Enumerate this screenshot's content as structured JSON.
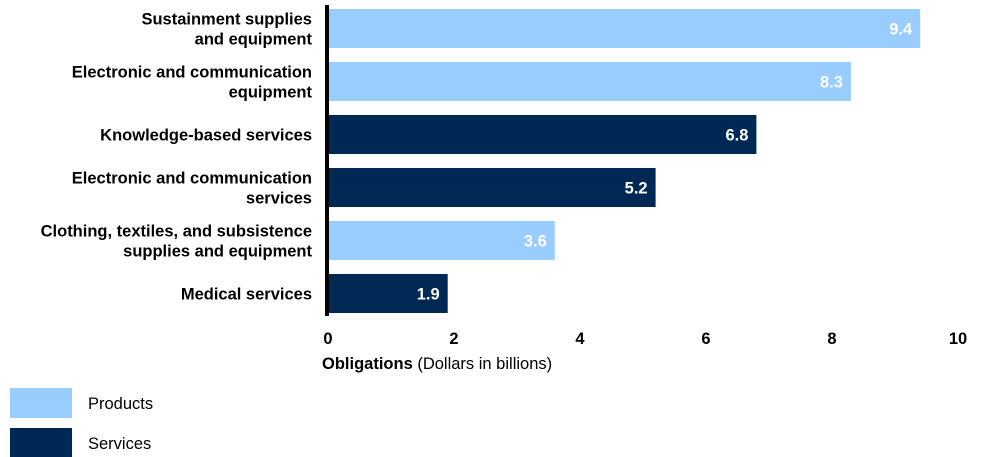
{
  "chart_data": {
    "type": "bar",
    "orientation": "horizontal",
    "categories": [
      [
        "Sustainment supplies",
        "and equipment"
      ],
      [
        "Electronic and communication",
        "equipment"
      ],
      [
        "Knowledge-based services"
      ],
      [
        "Electronic and communication",
        "services"
      ],
      [
        "Clothing, textiles, and subsistence",
        "supplies and equipment"
      ],
      [
        "Medical services"
      ]
    ],
    "values": [
      9.4,
      8.3,
      6.8,
      5.2,
      3.6,
      1.9
    ],
    "value_labels": [
      "9.4",
      "8.3",
      "6.8",
      "5.2",
      "3.6",
      "1.9"
    ],
    "groups": [
      "Products",
      "Products",
      "Services",
      "Services",
      "Products",
      "Services"
    ],
    "xlim": [
      0,
      10
    ],
    "xticks": [
      "0",
      "2",
      "4",
      "6",
      "8",
      "10"
    ],
    "xlabel_bold": "Obligations",
    "xlabel_rest": " (Dollars in billions)",
    "grid": false,
    "legend": {
      "position": "bottom-left",
      "items": [
        {
          "name": "Products",
          "color": "#99ccff"
        },
        {
          "name": "Services",
          "color": "#002855"
        }
      ]
    }
  }
}
